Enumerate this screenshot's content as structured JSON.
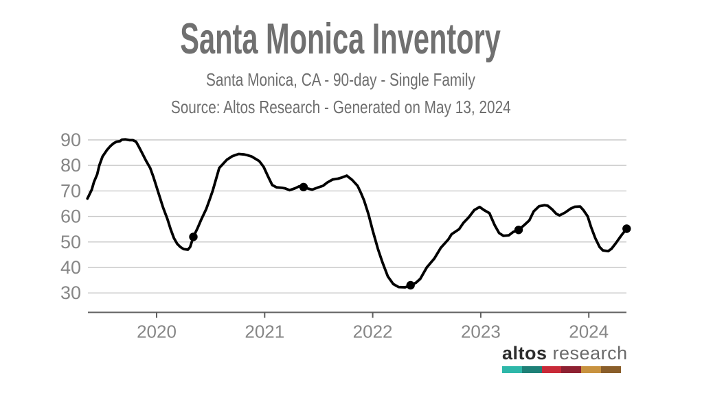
{
  "chart_data": {
    "type": "line",
    "title": "Santa Monica Inventory",
    "subtitle": "Santa Monica, CA - 90-day - Single Family",
    "source": "Source: Altos Research - Generated on May 13, 2024",
    "xlabel": "",
    "ylabel": "",
    "xlim": [
      2019.36,
      2024.38
    ],
    "ylim": [
      30,
      90
    ],
    "xticks": [
      2020,
      2021,
      2022,
      2023,
      2024
    ],
    "yticks": [
      30,
      40,
      50,
      60,
      70,
      80,
      90
    ],
    "grid": "horizontal",
    "legend": false,
    "series": [
      {
        "name": "Single Family Inventory (90-day)",
        "points": [
          [
            2019.36,
            67
          ],
          [
            2019.4,
            70.5
          ],
          [
            2019.42,
            73.5
          ],
          [
            2019.45,
            76.5
          ],
          [
            2019.47,
            80
          ],
          [
            2019.5,
            83.5
          ],
          [
            2019.54,
            86
          ],
          [
            2019.57,
            87.5
          ],
          [
            2019.6,
            88.6
          ],
          [
            2019.63,
            89.3
          ],
          [
            2019.66,
            89.5
          ],
          [
            2019.68,
            90.1
          ],
          [
            2019.71,
            90.2
          ],
          [
            2019.75,
            89.9
          ],
          [
            2019.78,
            89.9
          ],
          [
            2019.81,
            89.3
          ],
          [
            2019.84,
            87
          ],
          [
            2019.87,
            84.5
          ],
          [
            2019.9,
            82
          ],
          [
            2019.94,
            79
          ],
          [
            2019.97,
            75.5
          ],
          [
            2020.0,
            71.5
          ],
          [
            2020.03,
            67.5
          ],
          [
            2020.06,
            63.5
          ],
          [
            2020.1,
            59
          ],
          [
            2020.13,
            55
          ],
          [
            2020.16,
            51.5
          ],
          [
            2020.19,
            49.3
          ],
          [
            2020.22,
            48
          ],
          [
            2020.25,
            47.2
          ],
          [
            2020.29,
            47
          ],
          [
            2020.31,
            48
          ],
          [
            2020.34,
            52
          ],
          [
            2020.38,
            55.5
          ],
          [
            2020.41,
            58.5
          ],
          [
            2020.46,
            63
          ],
          [
            2020.49,
            66.5
          ],
          [
            2020.52,
            70.2
          ],
          [
            2020.58,
            79
          ],
          [
            2020.65,
            82.2
          ],
          [
            2020.7,
            83.6
          ],
          [
            2020.76,
            84.5
          ],
          [
            2020.81,
            84.3
          ],
          [
            2020.84,
            84
          ],
          [
            2020.88,
            83.5
          ],
          [
            2020.95,
            81.7
          ],
          [
            2020.99,
            79.5
          ],
          [
            2021.03,
            75.8
          ],
          [
            2021.07,
            72.3
          ],
          [
            2021.11,
            71.4
          ],
          [
            2021.16,
            71.2
          ],
          [
            2021.19,
            71
          ],
          [
            2021.23,
            70.3
          ],
          [
            2021.28,
            71
          ],
          [
            2021.32,
            71.8
          ],
          [
            2021.36,
            71.5
          ],
          [
            2021.41,
            70.8
          ],
          [
            2021.44,
            70.5
          ],
          [
            2021.49,
            71.3
          ],
          [
            2021.54,
            72
          ],
          [
            2021.58,
            73.3
          ],
          [
            2021.63,
            74.5
          ],
          [
            2021.68,
            74.8
          ],
          [
            2021.71,
            75.2
          ],
          [
            2021.76,
            76
          ],
          [
            2021.81,
            74.3
          ],
          [
            2021.86,
            72
          ],
          [
            2021.89,
            69.3
          ],
          [
            2021.92,
            66.3
          ],
          [
            2021.96,
            61
          ],
          [
            2022.0,
            54.5
          ],
          [
            2022.05,
            47
          ],
          [
            2022.09,
            42
          ],
          [
            2022.14,
            36.5
          ],
          [
            2022.19,
            33.5
          ],
          [
            2022.24,
            32.3
          ],
          [
            2022.3,
            32.2
          ],
          [
            2022.35,
            33
          ],
          [
            2022.4,
            34
          ],
          [
            2022.44,
            35.5
          ],
          [
            2022.5,
            40
          ],
          [
            2022.57,
            43.5
          ],
          [
            2022.63,
            47.7
          ],
          [
            2022.7,
            51
          ],
          [
            2022.73,
            53
          ],
          [
            2022.8,
            55
          ],
          [
            2022.84,
            57.5
          ],
          [
            2022.89,
            59.7
          ],
          [
            2022.94,
            62.5
          ],
          [
            2022.99,
            63.7
          ],
          [
            2023.03,
            62.5
          ],
          [
            2023.08,
            61.3
          ],
          [
            2023.13,
            56.5
          ],
          [
            2023.17,
            53.5
          ],
          [
            2023.21,
            52.4
          ],
          [
            2023.26,
            52.6
          ],
          [
            2023.3,
            53.9
          ],
          [
            2023.35,
            54.7
          ],
          [
            2023.4,
            56.5
          ],
          [
            2023.45,
            58.5
          ],
          [
            2023.49,
            62
          ],
          [
            2023.54,
            64
          ],
          [
            2023.59,
            64.4
          ],
          [
            2023.62,
            64.2
          ],
          [
            2023.66,
            62.8
          ],
          [
            2023.7,
            61
          ],
          [
            2023.73,
            60.4
          ],
          [
            2023.78,
            61.5
          ],
          [
            2023.83,
            63
          ],
          [
            2023.87,
            63.8
          ],
          [
            2023.92,
            63.9
          ],
          [
            2023.95,
            62.5
          ],
          [
            2023.99,
            60
          ],
          [
            2024.02,
            56
          ],
          [
            2024.06,
            51.5
          ],
          [
            2024.1,
            48
          ],
          [
            2024.13,
            46.7
          ],
          [
            2024.18,
            46.4
          ],
          [
            2024.21,
            47.3
          ],
          [
            2024.25,
            49.5
          ],
          [
            2024.3,
            52.5
          ],
          [
            2024.35,
            55.2
          ]
        ]
      }
    ],
    "markers": [
      [
        2020.34,
        52
      ],
      [
        2021.36,
        71.5
      ],
      [
        2022.35,
        33
      ],
      [
        2023.35,
        54.7
      ],
      [
        2024.35,
        55.2
      ]
    ],
    "colors": {
      "line": "#000000",
      "marker": "#000000",
      "grid": "#c9c9c9",
      "axis": "#5f5f5f",
      "axis_text": "#868686",
      "title_text": "#707070"
    }
  },
  "branding": {
    "name_bold": "altos",
    "name_light": "research",
    "bar_colors": [
      "#2eb7a9",
      "#1e8077",
      "#c82a38",
      "#8e2132",
      "#c8923f",
      "#8a5e2a"
    ]
  }
}
